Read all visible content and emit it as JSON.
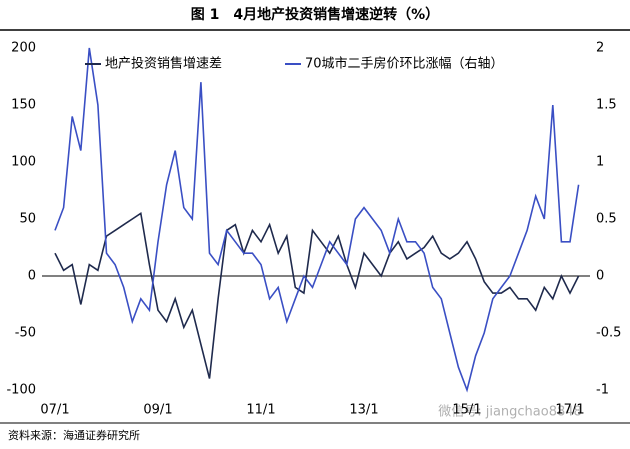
{
  "chart_data": {
    "type": "line",
    "title": "图 1　4月地产投资销售增速逆转（%）",
    "source": "资料来源：海通证券研究所",
    "watermark": "微信号: jiangchao8848",
    "legend": "top",
    "categories": [
      "07/1",
      null,
      null,
      null,
      null,
      null,
      null,
      null,
      null,
      null,
      null,
      null,
      "09/1",
      null,
      null,
      null,
      null,
      null,
      null,
      null,
      null,
      null,
      null,
      null,
      "11/1",
      null,
      null,
      null,
      null,
      null,
      null,
      null,
      null,
      null,
      null,
      null,
      "13/1",
      null,
      null,
      null,
      null,
      null,
      null,
      null,
      null,
      null,
      null,
      null,
      "15/1",
      null,
      null,
      null,
      null,
      null,
      null,
      null,
      null,
      null,
      null,
      null,
      "17/1",
      null
    ],
    "ylim": [
      -100,
      200
    ],
    "yticks": [
      -100,
      -50,
      0,
      50,
      100,
      150,
      200
    ],
    "y2lim": [
      -1,
      2
    ],
    "y2ticks": [
      -1,
      -0.5,
      0,
      0.5,
      1,
      1.5,
      2
    ],
    "series": [
      {
        "name": "地产投资销售增速差",
        "color": "#1f2a4d",
        "values": [
          20,
          5,
          10,
          -25,
          10,
          5,
          35,
          40,
          45,
          50,
          55,
          10,
          -30,
          -40,
          -20,
          -45,
          -30,
          -60,
          -90,
          -20,
          40,
          45,
          20,
          40,
          30,
          45,
          20,
          35,
          -10,
          -15,
          40,
          30,
          20,
          35,
          10,
          -10,
          20,
          10,
          0,
          20,
          30,
          15,
          20,
          25,
          35,
          20,
          15,
          20,
          30,
          15,
          -5,
          -15,
          -15,
          -10,
          -20,
          -20,
          -30,
          -10,
          -20,
          0,
          -15,
          0
        ]
      },
      {
        "name": "70城市二手房价环比涨幅（右轴）",
        "color": "#3a4fc4",
        "axis": "y2",
        "values": [
          0.4,
          0.6,
          1.4,
          1.1,
          2.0,
          1.5,
          0.2,
          0.1,
          -0.1,
          -0.4,
          -0.2,
          -0.3,
          0.3,
          0.8,
          1.1,
          0.6,
          0.5,
          1.7,
          0.2,
          0.1,
          0.4,
          0.3,
          0.2,
          0.2,
          0.1,
          -0.2,
          -0.1,
          -0.4,
          -0.2,
          0.0,
          -0.1,
          0.1,
          0.3,
          0.2,
          0.1,
          0.5,
          0.6,
          0.5,
          0.4,
          0.2,
          0.5,
          0.3,
          0.3,
          0.2,
          -0.1,
          -0.2,
          -0.5,
          -0.8,
          -1.0,
          -0.7,
          -0.5,
          -0.2,
          -0.1,
          0.0,
          0.2,
          0.4,
          0.7,
          0.5,
          1.5,
          0.3,
          0.3,
          0.8
        ]
      }
    ]
  }
}
